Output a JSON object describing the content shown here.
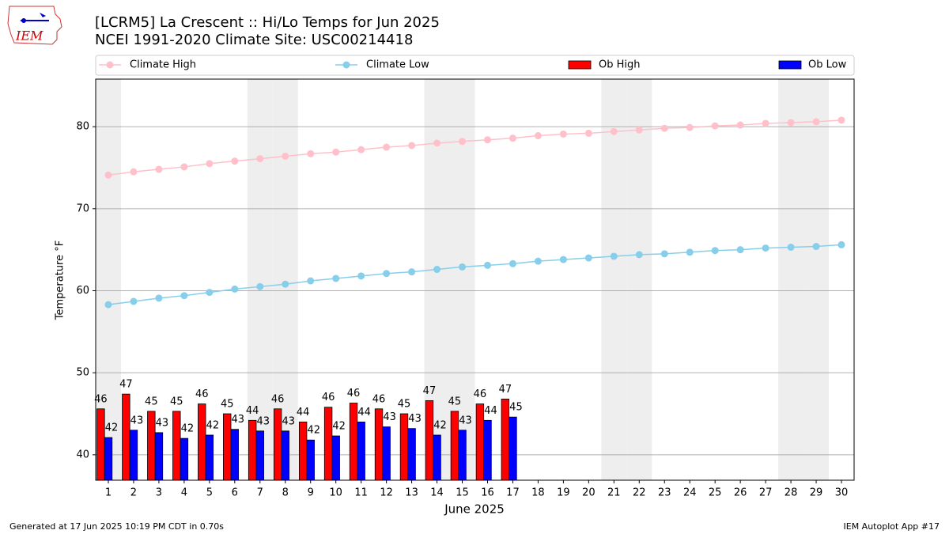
{
  "chart_data": {
    "type": "combo",
    "title": "[LCRM5] La Crescent :: Hi/Lo Temps for Jun 2025",
    "subtitle": "NCEI 1991-2020 Climate Site: USC00214418",
    "logo": "IEM",
    "xlabel": "June 2025",
    "ylabel": "Temperature °F",
    "x": [
      1,
      2,
      3,
      4,
      5,
      6,
      7,
      8,
      9,
      10,
      11,
      12,
      13,
      14,
      15,
      16,
      17,
      18,
      19,
      20,
      21,
      22,
      23,
      24,
      25,
      26,
      27,
      28,
      29,
      30
    ],
    "xlim": [
      0.5,
      30.5
    ],
    "xticks": [
      1,
      2,
      3,
      4,
      5,
      6,
      7,
      8,
      9,
      10,
      11,
      12,
      13,
      14,
      15,
      16,
      17,
      18,
      19,
      20,
      21,
      22,
      23,
      24,
      25,
      26,
      27,
      28,
      29,
      30
    ],
    "ylim": [
      36.9,
      85.8
    ],
    "yticks": [
      40,
      50,
      60,
      70,
      80
    ],
    "grid": true,
    "shaded_days": [
      1,
      7,
      8,
      14,
      15,
      21,
      22,
      28,
      29
    ],
    "legend": "top",
    "series": [
      {
        "name": "Climate High",
        "color": "#ffc0cb",
        "type": "line",
        "values": [
          74.1,
          74.5,
          74.8,
          75.1,
          75.5,
          75.8,
          76.1,
          76.4,
          76.7,
          76.9,
          77.2,
          77.5,
          77.7,
          78.0,
          78.2,
          78.4,
          78.6,
          78.9,
          79.1,
          79.2,
          79.4,
          79.6,
          79.8,
          79.9,
          80.1,
          80.2,
          80.4,
          80.5,
          80.6,
          80.8
        ]
      },
      {
        "name": "Climate Low",
        "color": "#87ceeb",
        "type": "line",
        "values": [
          58.3,
          58.7,
          59.1,
          59.4,
          59.8,
          60.2,
          60.5,
          60.8,
          61.2,
          61.5,
          61.8,
          62.1,
          62.3,
          62.6,
          62.9,
          63.1,
          63.3,
          63.6,
          63.8,
          64.0,
          64.2,
          64.4,
          64.5,
          64.7,
          64.9,
          65.0,
          65.2,
          65.3,
          65.4,
          65.6
        ]
      },
      {
        "name": "Ob High",
        "color": "#ff0000",
        "type": "bar",
        "values": [
          45.6,
          47.4,
          45.3,
          45.3,
          46.2,
          45.0,
          44.2,
          45.6,
          44.0,
          45.8,
          46.3,
          45.6,
          45.0,
          46.6,
          45.3,
          46.2,
          46.8,
          null,
          null,
          null,
          null,
          null,
          null,
          null,
          null,
          null,
          null,
          null,
          null,
          null
        ],
        "value_labels": [
          "46",
          "47",
          "45",
          "45",
          "46",
          "45",
          "44",
          "46",
          "44",
          "46",
          "46",
          "46",
          "45",
          "47",
          "45",
          "46",
          "47",
          null,
          null,
          null,
          null,
          null,
          null,
          null,
          null,
          null,
          null,
          null,
          null,
          null
        ]
      },
      {
        "name": "Ob Low",
        "color": "#0000ff",
        "type": "bar",
        "values": [
          42.1,
          43.0,
          42.7,
          42.0,
          42.4,
          43.1,
          42.9,
          42.9,
          41.8,
          42.3,
          44.0,
          43.4,
          43.2,
          42.4,
          43.0,
          44.2,
          44.6,
          null,
          null,
          null,
          null,
          null,
          null,
          null,
          null,
          null,
          null,
          null,
          null,
          null
        ],
        "value_labels": [
          "42",
          "43",
          "43",
          "42",
          "42",
          "43",
          "43",
          "43",
          "42",
          "42",
          "44",
          "43",
          "43",
          "42",
          "43",
          "44",
          "45",
          null,
          null,
          null,
          null,
          null,
          null,
          null,
          null,
          null,
          null,
          null,
          null,
          null
        ]
      }
    ],
    "footer_left": "Generated at 17 Jun 2025 10:19 PM CDT in 0.70s",
    "footer_right": "IEM Autoplot App #17"
  }
}
